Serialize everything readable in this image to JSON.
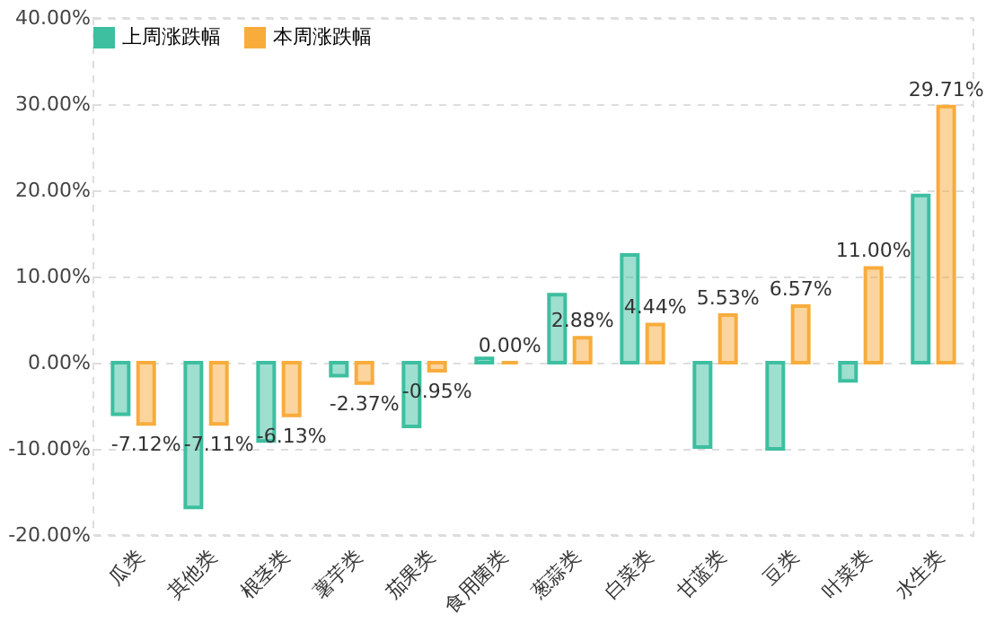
{
  "chart_data": {
    "type": "bar",
    "categories": [
      "瓜类",
      "其他类",
      "根茎类",
      "薯芋类",
      "茄果类",
      "食用菌类",
      "葱蒜类",
      "白菜类",
      "甘蓝类",
      "豆类",
      "叶菜类",
      "水生类"
    ],
    "series": [
      {
        "name": "上周涨跌幅",
        "color": "#3dbfa0",
        "values": [
          -6.0,
          -16.8,
          -9.1,
          -1.5,
          -7.4,
          0.5,
          7.9,
          12.5,
          -9.8,
          -10.0,
          -2.1,
          19.4
        ]
      },
      {
        "name": "本周涨跌幅",
        "color": "#f8ac3c",
        "values": [
          -7.12,
          -7.11,
          -6.13,
          -2.37,
          -0.95,
          0.0,
          2.88,
          4.44,
          5.53,
          6.57,
          11.0,
          29.71
        ],
        "value_labels": [
          "-7.12%",
          "-7.11%",
          "-6.13%",
          "-2.37%",
          "-0.95%",
          "0.00%",
          "2.88%",
          "4.44%",
          "5.53%",
          "6.57%",
          "11.00%",
          "29.71%"
        ]
      }
    ],
    "ylim": [
      -20,
      40
    ],
    "yticks": [
      {
        "value": -20,
        "label": "-20.00%"
      },
      {
        "value": -10,
        "label": "-10.00%"
      },
      {
        "value": 0,
        "label": "0.00%"
      },
      {
        "value": 10,
        "label": "10.00%"
      },
      {
        "value": 20,
        "label": "20.00%"
      },
      {
        "value": 30,
        "label": "30.00%"
      },
      {
        "value": 40,
        "label": "40.00%"
      }
    ],
    "grid": "y",
    "legend": "top"
  }
}
